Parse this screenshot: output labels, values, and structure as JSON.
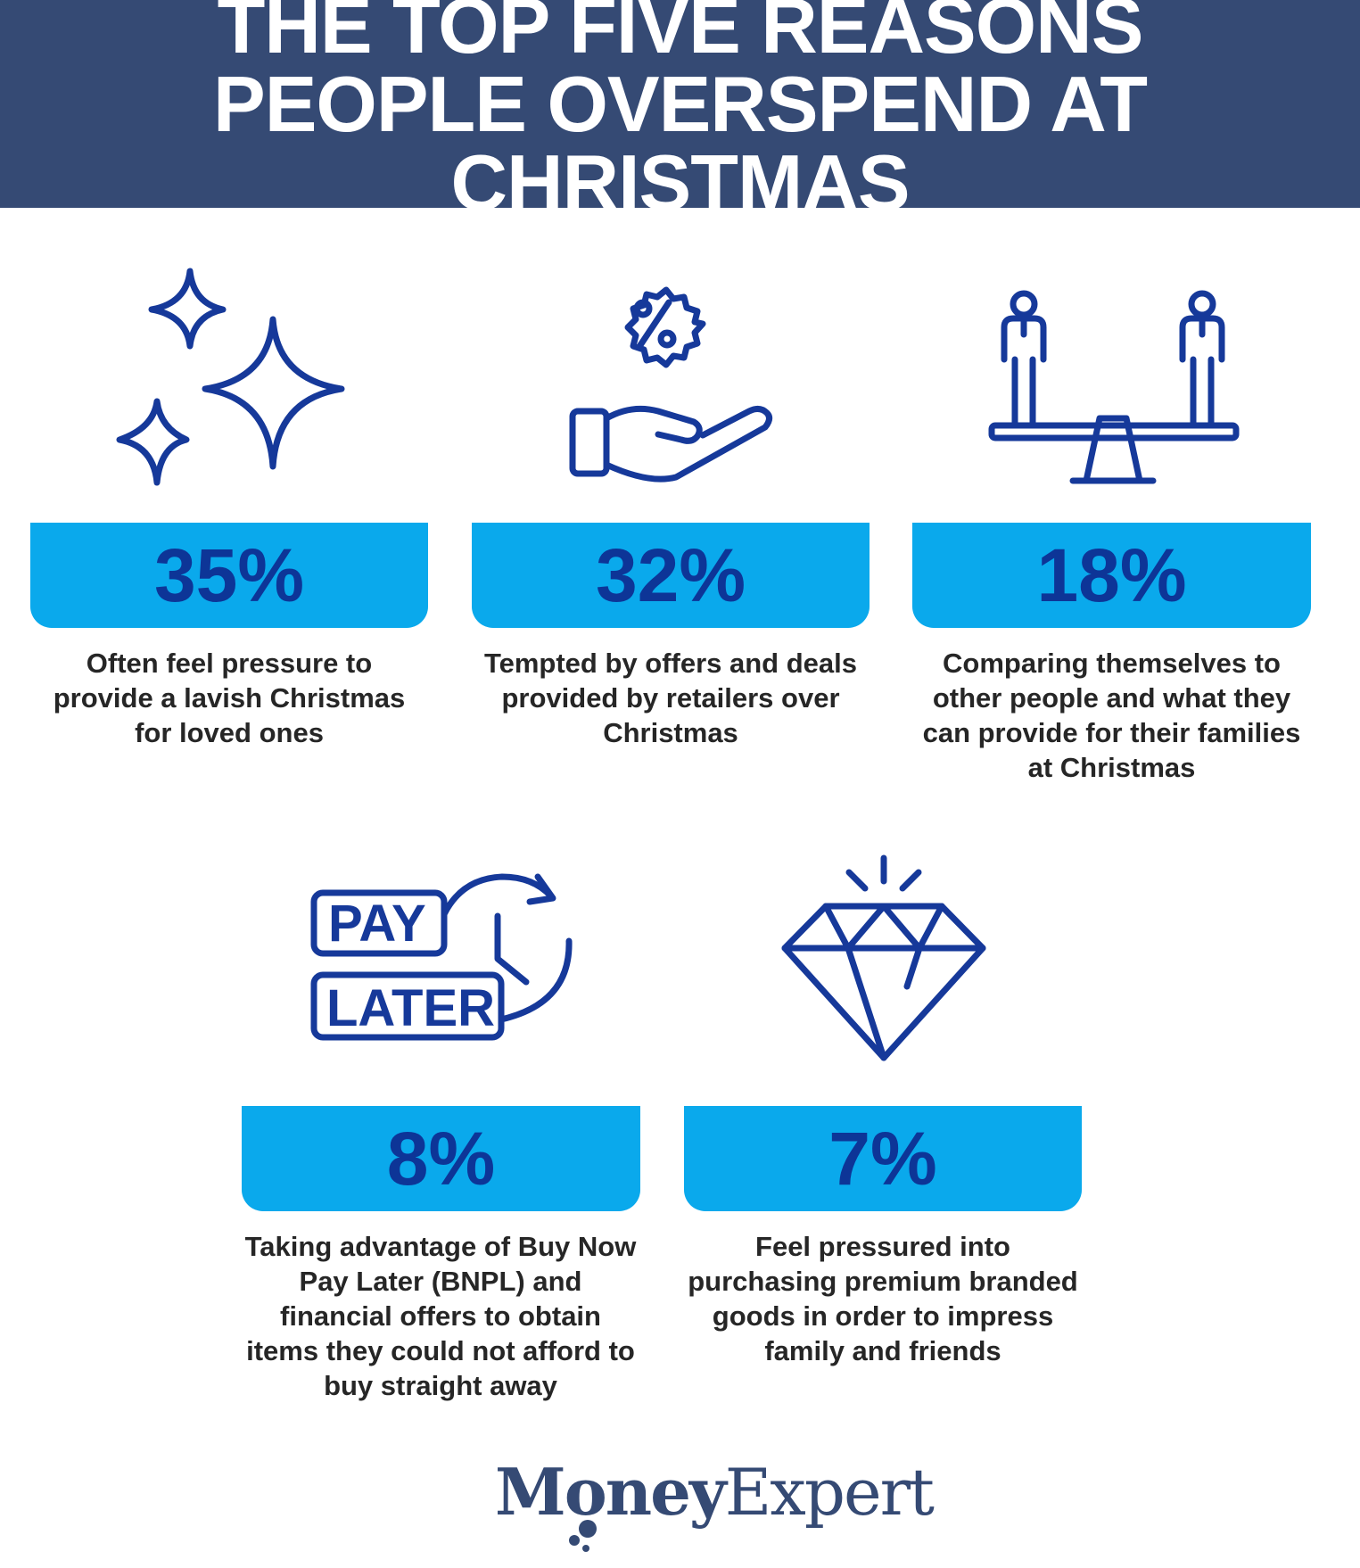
{
  "header": {
    "title": "THE TOP FIVE REASONS PEOPLE OVERSPEND AT CHRISTMAS"
  },
  "colors": {
    "header_bg": "#354a74",
    "box_bg": "#0aa9ec",
    "percent_text": "#0d3597",
    "icon_stroke": "#16399a",
    "body_text": "#262626"
  },
  "reasons": [
    {
      "icon": "sparkles-icon",
      "percent": "35%",
      "text": "Often feel pressure to provide a lavish Christmas for loved ones"
    },
    {
      "icon": "hand-discount-icon",
      "percent": "32%",
      "text": "Tempted by offers and deals provided by retailers over Christmas"
    },
    {
      "icon": "seesaw-people-icon",
      "percent": "18%",
      "text": "Comparing themselves to other people and what they can provide for their families at Christmas"
    },
    {
      "icon": "pay-later-clock-icon",
      "percent": "8%",
      "text": "Taking advantage of Buy Now Pay Later (BNPL) and financial offers to obtain items they could not afford to buy straight away",
      "icon_text_1": "PAY",
      "icon_text_2": "LATER"
    },
    {
      "icon": "diamond-icon",
      "percent": "7%",
      "text": "Feel pressured into purchasing premium branded goods in order to impress family and friends"
    }
  ],
  "logo": {
    "part1": "Money",
    "part2": "Expert"
  }
}
